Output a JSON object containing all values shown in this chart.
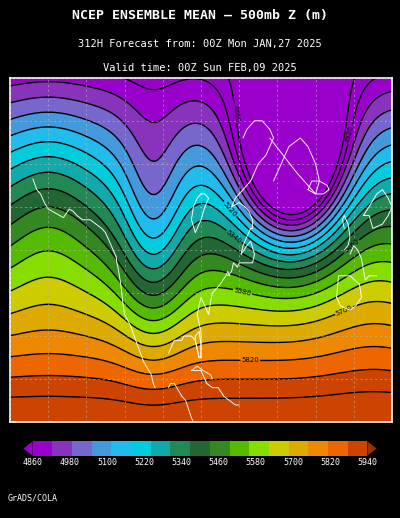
{
  "title_line1": "NCEP ENSEMBLE MEAN – 500mb Z (m)",
  "title_line2": "312H Forecast from: 00Z Mon JAN,27 2025",
  "title_line3": "Valid time: 00Z Sun FEB,09 2025",
  "colorbar_labels": [
    "4860",
    "4980",
    "5100",
    "5220",
    "5340",
    "5460",
    "5580",
    "5700",
    "5820",
    "5940"
  ],
  "contour_levels": [
    4860,
    4920,
    4980,
    5040,
    5100,
    5160,
    5220,
    5280,
    5340,
    5400,
    5460,
    5520,
    5580,
    5640,
    5700,
    5760,
    5820,
    5880,
    5940
  ],
  "fill_colors": [
    "#9900CC",
    "#9900CC",
    "#8833BB",
    "#7766CC",
    "#4499DD",
    "#22BBEE",
    "#00CCDD",
    "#11AAAA",
    "#228855",
    "#226633",
    "#338822",
    "#55BB00",
    "#88DD00",
    "#CCCC00",
    "#DDAA00",
    "#EE8800",
    "#EE6600",
    "#CC4400",
    "#993300"
  ],
  "background_color": "#000000",
  "text_color": "#ffffff",
  "credit": "GrADS/COLA",
  "map_xlim": [
    -180,
    20
  ],
  "map_ylim": [
    10,
    90
  ],
  "grid_lats": [
    10,
    20,
    30,
    40,
    50,
    60,
    70,
    80,
    90
  ],
  "grid_lons": [
    -180,
    -160,
    -140,
    -120,
    -100,
    -80,
    -60,
    -40,
    -20,
    0,
    20
  ]
}
